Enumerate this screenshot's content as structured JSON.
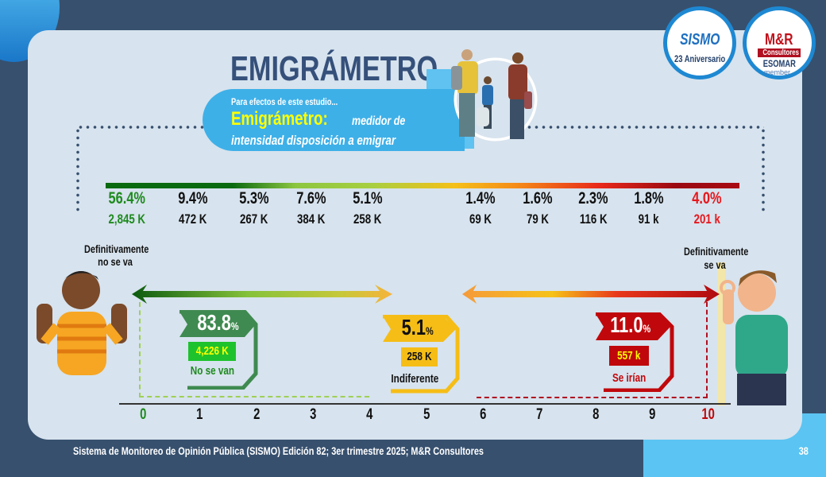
{
  "header": {
    "title": "EMIGRÁMETRO",
    "intro": "Para efectos de este estudio...",
    "term": "Emigrámetro:",
    "definition_1": "medidor de",
    "definition_2": "intensidad disposición a emigrar"
  },
  "logos": {
    "sismo": "SISMO",
    "sismo_sub": "23 Aniversario",
    "mr": "M&R",
    "mr_sub": "Consultores",
    "esomar": "ESOMAR",
    "member": "member"
  },
  "labels": {
    "left_end": "Definitivamente no se va",
    "right_end": "Definitivamente se va"
  },
  "groups": [
    {
      "pct": "83.8",
      "sym": "%",
      "count": "4,226 K",
      "label": "No se van"
    },
    {
      "pct": "5.1",
      "sym": "%",
      "count": "258 K",
      "label": "Indiferente"
    },
    {
      "pct": "11.0",
      "sym": "%",
      "count": "557 k",
      "label": "Se irían"
    }
  ],
  "footer": {
    "source": "Sistema de Monitoreo de Opinión Pública (SISMO) Edición 82; 3er trimestre 2025; M&R Consultores",
    "page": "38"
  },
  "colors": {
    "green": "#1f8a1f",
    "red": "#e8161b",
    "group_green": "#3f8a50",
    "group_yellow": "#f5bd16",
    "group_red": "#c0080c"
  },
  "chart_data": {
    "type": "bar",
    "title": "EMIGRÁMETRO",
    "categories": [
      "0",
      "1",
      "2",
      "3",
      "4",
      "5",
      "6",
      "7",
      "8",
      "9",
      "10"
    ],
    "pct_labels": [
      "56.4%",
      "9.4%",
      "5.3%",
      "7.6%",
      "5.1%",
      "",
      "1.4%",
      "1.6%",
      "2.3%",
      "1.8%",
      "4.0%"
    ],
    "count_labels": [
      "2,845 K",
      "472 K",
      "267 K",
      "384 K",
      "258 K",
      "",
      "69 K",
      "79 K",
      "116 K",
      "91 k",
      "201 k"
    ],
    "values": [
      56.4,
      9.4,
      5.3,
      7.6,
      5.1,
      null,
      1.4,
      1.6,
      2.3,
      1.8,
      4.0
    ],
    "xlabel": "",
    "ylabel": ""
  }
}
